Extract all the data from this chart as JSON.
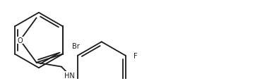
{
  "bg_color": "#ffffff",
  "line_color": "#1a1a1a",
  "line_width": 1.3,
  "font_size": 7.0,
  "font_color": "#1a1a1a",
  "label_O": "O",
  "label_HN": "HN",
  "label_Br": "Br",
  "label_F": "F",
  "figsize": [
    3.61,
    1.16
  ],
  "dpi": 100
}
